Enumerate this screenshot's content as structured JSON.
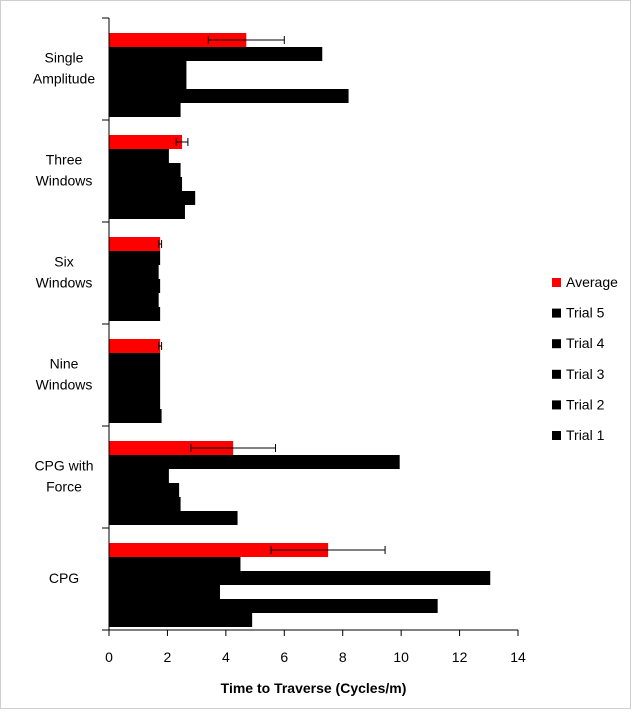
{
  "chart_data": {
    "type": "bar",
    "orientation": "horizontal",
    "title": "",
    "xlabel": "Time to Traverse (Cycles/m)",
    "ylabel": "",
    "xlim": [
      0,
      14
    ],
    "x_ticks": [
      0,
      2,
      4,
      6,
      8,
      10,
      12,
      14
    ],
    "grid": false,
    "legend_position": "right",
    "categories": [
      {
        "lines": [
          "Single",
          "Amplitude"
        ]
      },
      {
        "lines": [
          "Three",
          "Windows"
        ]
      },
      {
        "lines": [
          "Six",
          "Windows"
        ]
      },
      {
        "lines": [
          "Nine",
          "Windows"
        ]
      },
      {
        "lines": [
          "CPG with",
          "Force"
        ]
      },
      {
        "lines": [
          "CPG"
        ]
      }
    ],
    "series": [
      {
        "name": "Average",
        "color": "#ff0000",
        "values": [
          4.7,
          2.5,
          1.75,
          1.75,
          4.25,
          7.5
        ],
        "error": [
          1.3,
          0.2,
          0.05,
          0.05,
          1.45,
          1.95
        ]
      },
      {
        "name": "Trial 5",
        "color": "#000000",
        "values": [
          7.3,
          2.05,
          1.75,
          1.75,
          9.95,
          4.5
        ]
      },
      {
        "name": "Trial 4",
        "color": "#000000",
        "values": [
          2.65,
          2.45,
          1.7,
          1.75,
          2.05,
          13.05
        ]
      },
      {
        "name": "Trial 3",
        "color": "#000000",
        "values": [
          2.65,
          2.5,
          1.75,
          1.75,
          2.4,
          3.8
        ]
      },
      {
        "name": "Trial 2",
        "color": "#000000",
        "values": [
          8.2,
          2.95,
          1.7,
          1.75,
          2.45,
          11.25
        ]
      },
      {
        "name": "Trial 1",
        "color": "#000000",
        "values": [
          2.45,
          2.6,
          1.75,
          1.8,
          4.4,
          4.9
        ]
      }
    ]
  }
}
